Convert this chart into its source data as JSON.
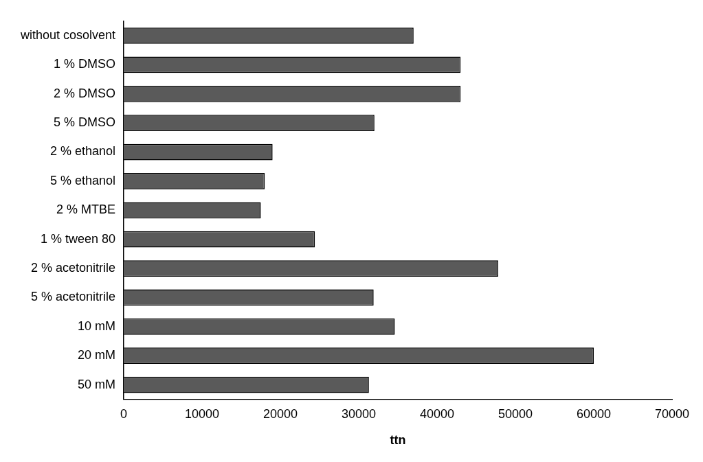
{
  "chart_data": {
    "type": "bar",
    "orientation": "horizontal",
    "xlabel": "ttn",
    "categories": [
      "without cosolvent",
      "1 % DMSO",
      "2 % DMSO",
      "5 % DMSO",
      "2 % ethanol",
      "5 % ethanol",
      "2 % MTBE",
      "1 % tween 80",
      "2 % acetonitrile",
      "5 % acetonitrile",
      "10 mM",
      "20 mM",
      "50 mM"
    ],
    "values": [
      37000,
      43000,
      43000,
      32000,
      19000,
      18000,
      17500,
      24400,
      47800,
      31900,
      34600,
      60000,
      31300
    ],
    "color": "#5a5a5a",
    "xlim": [
      0,
      70000
    ],
    "xticks": [
      0,
      10000,
      20000,
      30000,
      40000,
      50000,
      60000,
      70000
    ],
    "grid": false,
    "legend": false
  }
}
